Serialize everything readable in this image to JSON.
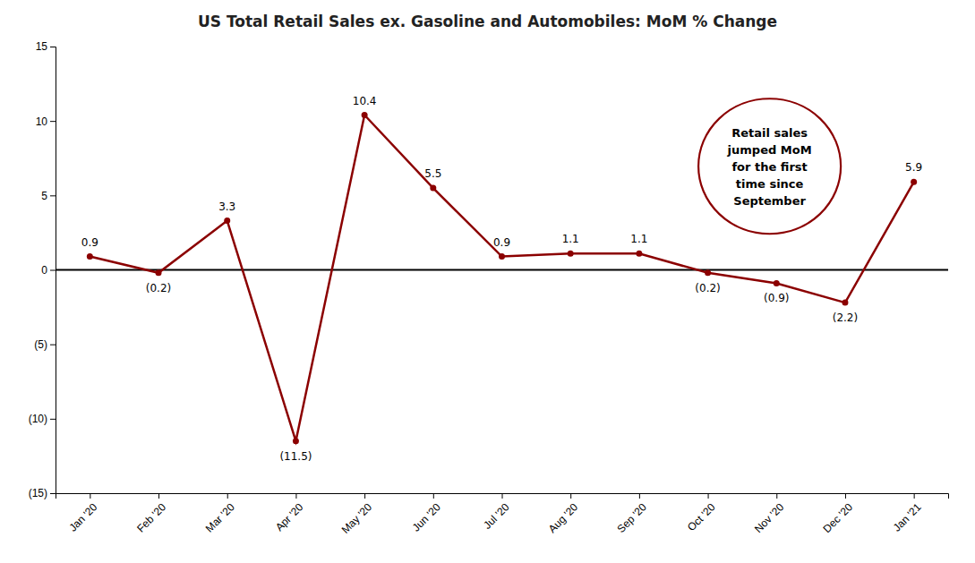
{
  "chart_data": {
    "type": "line",
    "title": "US Total Retail Sales ex. Gasoline and Automobiles: MoM % Change",
    "categories": [
      "Jan '20",
      "Feb '20",
      "Mar '20",
      "Apr '20",
      "May '20",
      "Jun '20",
      "Jul '20",
      "Aug '20",
      "Sep '20",
      "Oct '20",
      "Nov '20",
      "Dec '20",
      "Jan '21"
    ],
    "values": [
      0.9,
      -0.2,
      3.3,
      -11.5,
      10.4,
      5.5,
      0.9,
      1.1,
      1.1,
      -0.2,
      -0.9,
      -2.2,
      5.9
    ],
    "value_labels": [
      "0.9",
      "(0.2)",
      "3.3",
      "(11.5)",
      "10.4",
      "5.5",
      "0.9",
      "1.1",
      "1.1",
      "(0.2)",
      "(0.9)",
      "(2.2)",
      "5.9"
    ],
    "data_labels": true,
    "color": "#8B0000",
    "marker": "circle",
    "ylim": [
      -15,
      15
    ],
    "yticks": [
      {
        "value": -15,
        "label": "(15)"
      },
      {
        "value": -10,
        "label": "(10)"
      },
      {
        "value": -5,
        "label": "(5)"
      },
      0,
      5,
      10,
      15
    ],
    "grid": false,
    "annotation": "Retail sales\njumped MoM\nfor the first\ntime since\nSeptember"
  }
}
